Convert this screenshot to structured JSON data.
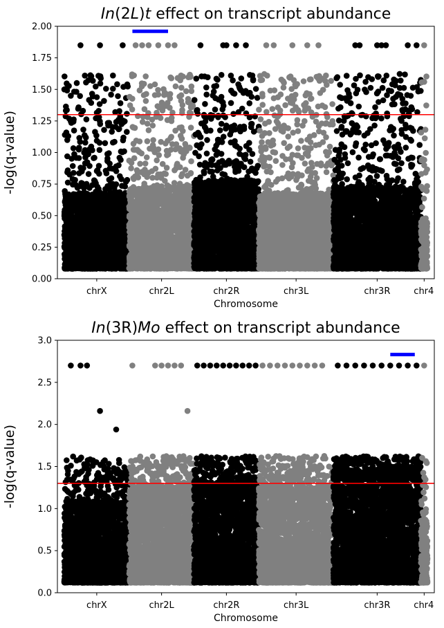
{
  "chart_data": [
    {
      "type": "scatter",
      "title_parts": [
        {
          "text": "In",
          "italic": true
        },
        {
          "text": "(2",
          "italic": false
        },
        {
          "text": "L",
          "italic": true
        },
        {
          "text": ")",
          "italic": false
        },
        {
          "text": "t",
          "italic": true
        },
        {
          "text": " effect on transcript abundance",
          "italic": false
        }
      ],
      "xlabel": "Chromosome",
      "ylabel": "-log(q-value)",
      "ylim": [
        0,
        2.0
      ],
      "yticks": [
        "0.00",
        "0.25",
        "0.50",
        "0.75",
        "1.00",
        "1.25",
        "1.50",
        "1.75",
        "2.00"
      ],
      "yticks_values": [
        0,
        0.25,
        0.5,
        0.75,
        1.0,
        1.25,
        1.5,
        1.75,
        2.0
      ],
      "threshold": 1.3,
      "threshold_color": "#ff0000",
      "series_colors": [
        "#000000",
        "#808080"
      ],
      "highlight_color": "#0000ff",
      "highlight": {
        "chromosome": "chr2L",
        "from": 0.05,
        "to": 0.6,
        "y": 1.96
      },
      "chromosomes": [
        {
          "name": "chrX",
          "span": 1.0,
          "dense_top": 0.6,
          "color_index": 0,
          "top_hits": [
            0.25,
            0.55,
            0.9,
            0.75,
            0.0,
            0.1
          ],
          "top_ys": [
            1.85,
            1.85,
            1.85,
            1.61,
            1.5,
            1.45
          ]
        },
        {
          "name": "chr2L",
          "span": 1.0,
          "dense_top": 0.65,
          "color_index": 1,
          "top_hits": [
            0.1,
            0.2,
            0.3,
            0.45,
            0.6,
            0.7,
            0.8
          ],
          "top_ys": [
            1.85,
            1.85,
            1.85,
            1.85,
            1.85,
            1.85,
            1.61
          ]
        },
        {
          "name": "chr2R",
          "span": 1.0,
          "dense_top": 0.7,
          "color_index": 0,
          "top_hits": [
            0.1,
            0.45,
            0.5,
            0.65,
            0.8,
            0.9
          ],
          "top_ys": [
            1.85,
            1.85,
            1.85,
            1.85,
            1.85,
            1.61
          ]
        },
        {
          "name": "chr3L",
          "span": 1.15,
          "dense_top": 0.6,
          "color_index": 1,
          "top_hits": [
            0.1,
            0.2,
            0.45,
            0.65,
            0.8,
            0.9
          ],
          "top_ys": [
            1.85,
            1.85,
            1.85,
            1.85,
            1.85,
            1.61
          ]
        },
        {
          "name": "chr3R",
          "span": 1.35,
          "dense_top": 0.65,
          "color_index": 0,
          "top_hits": [
            0.25,
            0.3,
            0.5,
            0.55,
            0.6,
            0.85,
            0.95
          ],
          "top_ys": [
            1.85,
            1.85,
            1.85,
            1.85,
            1.85,
            1.85,
            1.85
          ]
        },
        {
          "name": "chr4",
          "span": 0.1,
          "dense_top": 0.4,
          "color_index": 1,
          "top_hits": [
            0.5
          ],
          "top_ys": [
            1.85
          ]
        }
      ]
    },
    {
      "type": "scatter",
      "title_parts": [
        {
          "text": "In",
          "italic": true
        },
        {
          "text": "(3R)",
          "italic": false
        },
        {
          "text": "Mo",
          "italic": true
        },
        {
          "text": " effect on transcript abundance",
          "italic": false
        }
      ],
      "xlabel": "Chromosome",
      "ylabel": "-log(q-value)",
      "ylim": [
        0,
        3.0
      ],
      "yticks": [
        "0.0",
        "0.5",
        "1.0",
        "1.5",
        "2.0",
        "2.5",
        "3.0"
      ],
      "yticks_values": [
        0,
        0.5,
        1.0,
        1.5,
        2.0,
        2.5,
        3.0
      ],
      "threshold": 1.3,
      "threshold_color": "#ff0000",
      "series_colors": [
        "#000000",
        "#808080"
      ],
      "highlight_color": "#0000ff",
      "highlight": {
        "chromosome": "chr3R",
        "from": 0.65,
        "to": 0.93,
        "y": 2.83
      },
      "chromosomes": [
        {
          "name": "chrX",
          "span": 1.0,
          "dense_top": 0.65,
          "color_index": 0,
          "top_hits": [
            0.1,
            0.25,
            0.35,
            0.55,
            0.8
          ],
          "top_ys": [
            2.7,
            2.7,
            2.7,
            2.16,
            1.94
          ]
        },
        {
          "name": "chr2L",
          "span": 1.0,
          "dense_top": 0.75,
          "color_index": 1,
          "top_hits": [
            0.05,
            0.4,
            0.5,
            0.6,
            0.7,
            0.8,
            0.9
          ],
          "top_ys": [
            2.7,
            2.7,
            2.7,
            2.7,
            2.7,
            2.7,
            2.16
          ]
        },
        {
          "name": "chr2R",
          "span": 1.0,
          "dense_top": 0.8,
          "color_index": 0,
          "top_hits": [
            0.05,
            0.15,
            0.25,
            0.35,
            0.45,
            0.55,
            0.65,
            0.75,
            0.85,
            0.95
          ],
          "top_ys": [
            2.7,
            2.7,
            2.7,
            2.7,
            2.7,
            2.7,
            2.7,
            2.7,
            2.7,
            2.7
          ]
        },
        {
          "name": "chr3L",
          "span": 1.15,
          "dense_top": 0.75,
          "color_index": 1,
          "top_hits": [
            0.05,
            0.15,
            0.25,
            0.35,
            0.45,
            0.55,
            0.65,
            0.75,
            0.85
          ],
          "top_ys": [
            2.7,
            2.7,
            2.7,
            2.7,
            2.7,
            2.7,
            2.7,
            2.7,
            2.7
          ]
        },
        {
          "name": "chr3R",
          "span": 1.35,
          "dense_top": 0.9,
          "color_index": 0,
          "top_hits": [
            0.05,
            0.15,
            0.25,
            0.35,
            0.45,
            0.55,
            0.65,
            0.75,
            0.85,
            0.95
          ],
          "top_ys": [
            2.7,
            2.7,
            2.7,
            2.7,
            2.7,
            2.7,
            2.7,
            2.7,
            2.7,
            2.7
          ]
        },
        {
          "name": "chr4",
          "span": 0.1,
          "dense_top": 0.5,
          "color_index": 1,
          "top_hits": [
            0.5
          ],
          "top_ys": [
            2.7
          ]
        }
      ]
    }
  ]
}
